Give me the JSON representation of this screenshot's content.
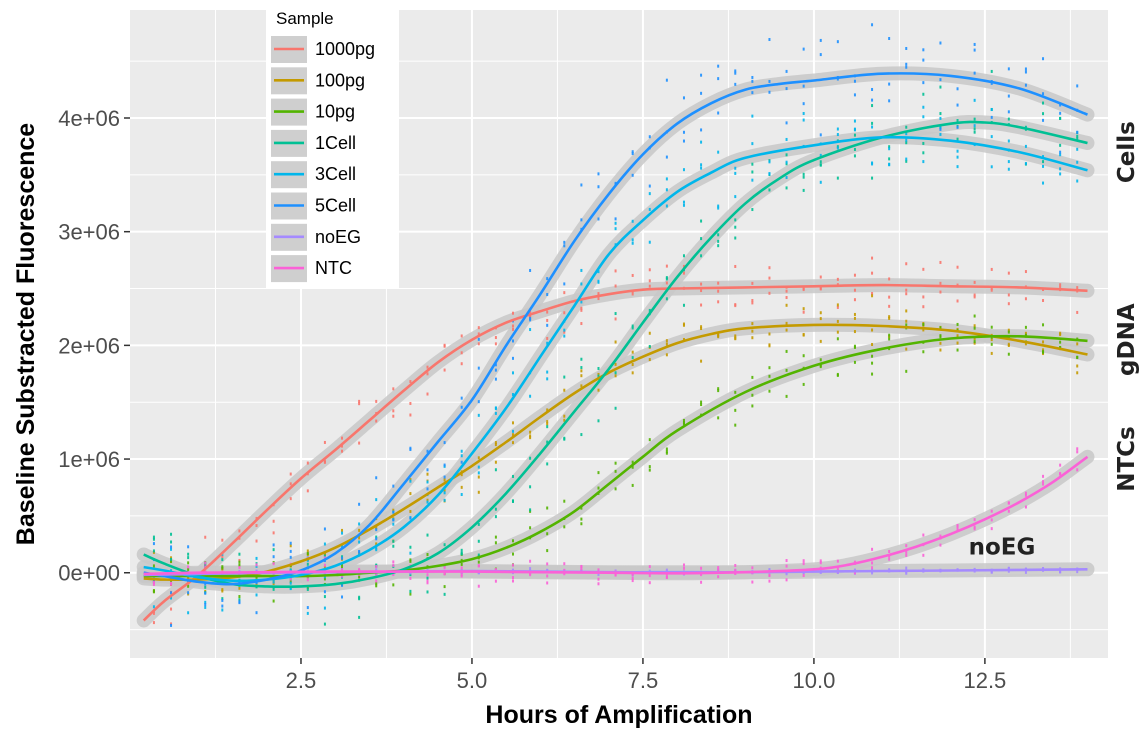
{
  "chart_data": {
    "type": "line",
    "xlabel": "Hours of Amplification",
    "ylabel": "Baseline Substracted Fluorescence",
    "xlim": [
      0,
      14.3
    ],
    "ylim": [
      -750000,
      4950000
    ],
    "x_ticks": [
      2.5,
      5.0,
      7.5,
      10.0,
      12.5
    ],
    "x_tick_labels": [
      "2.5",
      "5.0",
      "7.5",
      "10.0",
      "12.5"
    ],
    "y_ticks": [
      0,
      1000000,
      2000000,
      3000000,
      4000000
    ],
    "y_tick_labels": [
      "0e+00",
      "1e+06",
      "2e+06",
      "3e+06",
      "4e+06"
    ],
    "grid": true,
    "legend": {
      "title": "Sample",
      "placement": "top-left-inside"
    },
    "annotations": [
      {
        "text": "Cells",
        "x": 14.45,
        "y": 3700000,
        "rotated": true
      },
      {
        "text": "gDNA",
        "x": 14.45,
        "y": 2050000,
        "rotated": true
      },
      {
        "text": "NTCs",
        "x": 14.45,
        "y": 1000000,
        "rotated": true
      },
      {
        "text": "noEG",
        "x": 12.75,
        "y": 160000,
        "rotated": false
      }
    ],
    "series": [
      {
        "name": "1000pg",
        "color": "#F8766D",
        "x": [
          0.2,
          0.5,
          1,
          1.5,
          2,
          2.5,
          3,
          3.5,
          4,
          4.5,
          5,
          5.5,
          6,
          6.5,
          7,
          7.5,
          8,
          9,
          10,
          11,
          12,
          13,
          14
        ],
        "y": [
          -420000,
          -250000,
          -20000,
          260000,
          550000,
          830000,
          1080000,
          1340000,
          1600000,
          1850000,
          2050000,
          2200000,
          2300000,
          2390000,
          2450000,
          2490000,
          2500000,
          2510000,
          2520000,
          2530000,
          2520000,
          2510000,
          2480000
        ]
      },
      {
        "name": "100pg",
        "color": "#C49A00",
        "x": [
          0.2,
          0.5,
          1,
          1.5,
          2,
          2.5,
          3,
          3.5,
          4,
          4.5,
          5,
          5.5,
          6,
          6.5,
          7,
          7.5,
          8,
          8.5,
          9,
          10,
          11,
          12,
          13,
          14
        ],
        "y": [
          -50000,
          -60000,
          -60000,
          -40000,
          10000,
          100000,
          220000,
          380000,
          560000,
          750000,
          940000,
          1150000,
          1370000,
          1580000,
          1760000,
          1900000,
          2020000,
          2100000,
          2150000,
          2180000,
          2170000,
          2130000,
          2040000,
          1920000
        ]
      },
      {
        "name": "10pg",
        "color": "#53B400",
        "x": [
          0.2,
          1,
          2,
          2.5,
          3,
          3.5,
          4,
          4.5,
          5,
          5.5,
          6,
          6.5,
          7,
          7.5,
          8,
          9,
          10,
          11,
          12,
          13,
          14
        ],
        "y": [
          -30000,
          -30000,
          -30000,
          -30000,
          -20000,
          0,
          20000,
          60000,
          120000,
          220000,
          360000,
          540000,
          780000,
          1020000,
          1250000,
          1590000,
          1820000,
          1970000,
          2060000,
          2080000,
          2040000
        ]
      },
      {
        "name": "1Cell",
        "color": "#00C094",
        "x": [
          0.2,
          0.5,
          1,
          1.5,
          2,
          2.5,
          3,
          3.5,
          4,
          4.5,
          5,
          5.5,
          6,
          6.5,
          7,
          7.5,
          8,
          8.5,
          9,
          9.5,
          10,
          11,
          12,
          12.5,
          13,
          14
        ],
        "y": [
          160000,
          80000,
          -30000,
          -100000,
          -120000,
          -120000,
          -100000,
          -50000,
          30000,
          170000,
          400000,
          700000,
          1050000,
          1420000,
          1790000,
          2200000,
          2600000,
          2950000,
          3250000,
          3470000,
          3630000,
          3830000,
          3950000,
          3960000,
          3920000,
          3780000
        ]
      },
      {
        "name": "3Cell",
        "color": "#00B6EB",
        "x": [
          0.2,
          0.5,
          1,
          1.5,
          2,
          2.5,
          3,
          3.5,
          4,
          4.5,
          5,
          5.5,
          6,
          6.5,
          7,
          7.5,
          8,
          8.5,
          9,
          10,
          11,
          12,
          13,
          14
        ],
        "y": [
          50000,
          20000,
          -40000,
          -70000,
          -60000,
          -20000,
          60000,
          200000,
          400000,
          680000,
          1050000,
          1450000,
          1900000,
          2350000,
          2800000,
          3100000,
          3350000,
          3520000,
          3650000,
          3760000,
          3830000,
          3800000,
          3700000,
          3540000
        ]
      },
      {
        "name": "5Cell",
        "color": "#1E90FF",
        "x": [
          0.2,
          0.5,
          1,
          1.5,
          2,
          2.5,
          3,
          3.5,
          4,
          4.5,
          5,
          5.5,
          6,
          6.5,
          7,
          7.5,
          8,
          8.5,
          9,
          9.5,
          10,
          11,
          12,
          13,
          14
        ],
        "y": [
          0,
          -30000,
          -80000,
          -100000,
          -60000,
          20000,
          170000,
          420000,
          780000,
          1150000,
          1520000,
          2000000,
          2450000,
          2920000,
          3330000,
          3680000,
          3950000,
          4130000,
          4250000,
          4300000,
          4330000,
          4390000,
          4370000,
          4260000,
          4030000
        ]
      },
      {
        "name": "noEG",
        "color": "#A58AFF",
        "x": [
          0.2,
          1,
          2,
          3,
          4,
          5,
          6,
          7,
          8,
          9,
          10,
          11,
          12,
          13,
          14
        ],
        "y": [
          -20000,
          -10000,
          0,
          5000,
          10000,
          15000,
          10000,
          5000,
          5000,
          5000,
          10000,
          15000,
          20000,
          25000,
          30000
        ]
      },
      {
        "name": "NTC",
        "color": "#FB61D7",
        "x": [
          0.2,
          1,
          2,
          3,
          4,
          5,
          6,
          7,
          8,
          9,
          10,
          10.5,
          11,
          11.5,
          12,
          12.5,
          13,
          13.5,
          14
        ],
        "y": [
          -10000,
          0,
          5000,
          10000,
          10000,
          10000,
          5000,
          0,
          -5000,
          5000,
          30000,
          70000,
          140000,
          230000,
          340000,
          470000,
          620000,
          800000,
          1020000
        ]
      }
    ]
  }
}
